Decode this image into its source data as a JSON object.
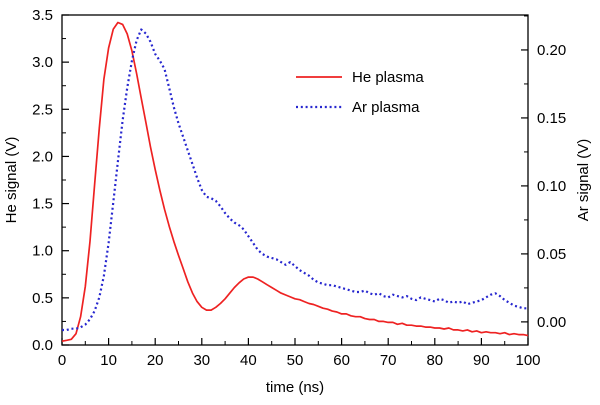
{
  "figure": {
    "background": "#ffffff",
    "axis_color": "#000000"
  },
  "chart_data": {
    "type": "line",
    "title": "",
    "xlabel": "time (ns)",
    "ylabel_left": "He signal (V)",
    "ylabel_right": "Ar signal (V)",
    "grid": false,
    "legend_position": "upper-center-inside",
    "x_range": [
      0,
      100
    ],
    "left_range": [
      0,
      3.5
    ],
    "right_range": [
      -0.017,
      0.2257
    ],
    "x_ticks": [
      0,
      10,
      20,
      30,
      40,
      50,
      60,
      70,
      80,
      90,
      100
    ],
    "x_tick_labels": [
      "0",
      "10",
      "20",
      "30",
      "40",
      "50",
      "60",
      "70",
      "80",
      "90",
      "100"
    ],
    "x_minor_ticks": [
      5,
      15,
      25,
      35,
      45,
      55,
      65,
      75,
      85,
      95
    ],
    "left_ticks": [
      0,
      0.5,
      1,
      1.5,
      2,
      2.5,
      3,
      3.5
    ],
    "left_tick_labels": [
      "0.0",
      "0.5",
      "1.0",
      "1.5",
      "2.0",
      "2.5",
      "3.0",
      "3.5"
    ],
    "left_minor_ticks": [
      0.25,
      0.75,
      1.25,
      1.75,
      2.25,
      2.75,
      3.25
    ],
    "right_ticks": [
      0,
      0.05,
      0.1,
      0.15,
      0.2
    ],
    "right_tick_labels": [
      "0.00",
      "0.05",
      "0.10",
      "0.15",
      "0.20"
    ],
    "right_minor_ticks": [
      0.025,
      0.075,
      0.125,
      0.175,
      0.225
    ],
    "legend": {
      "row_y": [
        77,
        107
      ],
      "entries": [
        {
          "label": "He plasma",
          "color": "#ee2222",
          "dash": "",
          "width": 1.8
        },
        {
          "label": "Ar plasma",
          "color": "#2727cf",
          "dash": "2 2.8",
          "width": 2.2
        }
      ]
    },
    "series": [
      {
        "id": "he-plasma",
        "name": "He plasma",
        "axis": "left",
        "color": "#ee2222",
        "dash": "",
        "width": 1.7,
        "peak": {
          "t": 12,
          "value": 3.42
        },
        "points": [
          [
            0,
            0.04
          ],
          [
            1,
            0.05
          ],
          [
            2,
            0.06
          ],
          [
            3,
            0.12
          ],
          [
            4,
            0.3
          ],
          [
            5,
            0.62
          ],
          [
            6,
            1.1
          ],
          [
            7,
            1.7
          ],
          [
            8,
            2.3
          ],
          [
            9,
            2.82
          ],
          [
            10,
            3.15
          ],
          [
            11,
            3.35
          ],
          [
            12,
            3.42
          ],
          [
            13,
            3.4
          ],
          [
            14,
            3.3
          ],
          [
            15,
            3.12
          ],
          [
            16,
            2.88
          ],
          [
            17,
            2.62
          ],
          [
            18,
            2.36
          ],
          [
            19,
            2.1
          ],
          [
            20,
            1.86
          ],
          [
            21,
            1.64
          ],
          [
            22,
            1.44
          ],
          [
            23,
            1.26
          ],
          [
            24,
            1.1
          ],
          [
            25,
            0.95
          ],
          [
            26,
            0.81
          ],
          [
            27,
            0.67
          ],
          [
            28,
            0.55
          ],
          [
            29,
            0.46
          ],
          [
            30,
            0.4
          ],
          [
            31,
            0.37
          ],
          [
            32,
            0.37
          ],
          [
            33,
            0.4
          ],
          [
            34,
            0.44
          ],
          [
            35,
            0.49
          ],
          [
            36,
            0.55
          ],
          [
            37,
            0.61
          ],
          [
            38,
            0.66
          ],
          [
            39,
            0.7
          ],
          [
            40,
            0.72
          ],
          [
            41,
            0.72
          ],
          [
            42,
            0.7
          ],
          [
            43,
            0.67
          ],
          [
            44,
            0.64
          ],
          [
            45,
            0.61
          ],
          [
            46,
            0.58
          ],
          [
            47,
            0.55
          ],
          [
            48,
            0.53
          ],
          [
            49,
            0.51
          ],
          [
            50,
            0.49
          ],
          [
            51,
            0.48
          ],
          [
            52,
            0.46
          ],
          [
            53,
            0.44
          ],
          [
            54,
            0.43
          ],
          [
            55,
            0.41
          ],
          [
            56,
            0.39
          ],
          [
            57,
            0.38
          ],
          [
            58,
            0.36
          ],
          [
            59,
            0.35
          ],
          [
            60,
            0.33
          ],
          [
            61,
            0.33
          ],
          [
            62,
            0.31
          ],
          [
            63,
            0.3
          ],
          [
            64,
            0.3
          ],
          [
            65,
            0.28
          ],
          [
            66,
            0.27
          ],
          [
            67,
            0.27
          ],
          [
            68,
            0.25
          ],
          [
            69,
            0.25
          ],
          [
            70,
            0.24
          ],
          [
            71,
            0.24
          ],
          [
            72,
            0.22
          ],
          [
            73,
            0.23
          ],
          [
            74,
            0.21
          ],
          [
            75,
            0.21
          ],
          [
            76,
            0.2
          ],
          [
            77,
            0.2
          ],
          [
            78,
            0.19
          ],
          [
            79,
            0.19
          ],
          [
            80,
            0.18
          ],
          [
            81,
            0.18
          ],
          [
            82,
            0.17
          ],
          [
            83,
            0.18
          ],
          [
            84,
            0.16
          ],
          [
            85,
            0.16
          ],
          [
            86,
            0.15
          ],
          [
            87,
            0.16
          ],
          [
            88,
            0.14
          ],
          [
            89,
            0.15
          ],
          [
            90,
            0.13
          ],
          [
            91,
            0.14
          ],
          [
            92,
            0.13
          ],
          [
            93,
            0.13
          ],
          [
            94,
            0.12
          ],
          [
            95,
            0.13
          ],
          [
            96,
            0.11
          ],
          [
            97,
            0.12
          ],
          [
            98,
            0.11
          ],
          [
            99,
            0.11
          ],
          [
            100,
            0.1
          ]
        ]
      },
      {
        "id": "ar-plasma",
        "name": "Ar plasma",
        "axis": "right",
        "color": "#2727cf",
        "dash": "2 2.8",
        "width": 2.2,
        "peak": {
          "t": 17,
          "value": 0.215
        },
        "points": [
          [
            0,
            -0.006
          ],
          [
            1,
            -0.006
          ],
          [
            2,
            -0.005
          ],
          [
            3,
            -0.005
          ],
          [
            4,
            -0.004
          ],
          [
            5,
            -0.002
          ],
          [
            6,
            0.002
          ],
          [
            7,
            0.008
          ],
          [
            8,
            0.018
          ],
          [
            9,
            0.034
          ],
          [
            10,
            0.058
          ],
          [
            11,
            0.088
          ],
          [
            12,
            0.118
          ],
          [
            13,
            0.148
          ],
          [
            14,
            0.172
          ],
          [
            15,
            0.192
          ],
          [
            16,
            0.207
          ],
          [
            17,
            0.215
          ],
          [
            18,
            0.212
          ],
          [
            19,
            0.206
          ],
          [
            20,
            0.197
          ],
          [
            21,
            0.192
          ],
          [
            22,
            0.186
          ],
          [
            23,
            0.172
          ],
          [
            24,
            0.158
          ],
          [
            25,
            0.146
          ],
          [
            26,
            0.136
          ],
          [
            27,
            0.126
          ],
          [
            28,
            0.116
          ],
          [
            29,
            0.106
          ],
          [
            30,
            0.097
          ],
          [
            31,
            0.092
          ],
          [
            32,
            0.091
          ],
          [
            33,
            0.089
          ],
          [
            34,
            0.085
          ],
          [
            35,
            0.08
          ],
          [
            36,
            0.076
          ],
          [
            37,
            0.073
          ],
          [
            38,
            0.071
          ],
          [
            39,
            0.068
          ],
          [
            40,
            0.063
          ],
          [
            41,
            0.058
          ],
          [
            42,
            0.053
          ],
          [
            43,
            0.05
          ],
          [
            44,
            0.048
          ],
          [
            45,
            0.047
          ],
          [
            46,
            0.046
          ],
          [
            47,
            0.044
          ],
          [
            48,
            0.042
          ],
          [
            49,
            0.044
          ],
          [
            50,
            0.041
          ],
          [
            51,
            0.038
          ],
          [
            52,
            0.036
          ],
          [
            53,
            0.034
          ],
          [
            54,
            0.031
          ],
          [
            55,
            0.029
          ],
          [
            56,
            0.028
          ],
          [
            57,
            0.027
          ],
          [
            58,
            0.027
          ],
          [
            59,
            0.026
          ],
          [
            60,
            0.025
          ],
          [
            61,
            0.024
          ],
          [
            62,
            0.023
          ],
          [
            63,
            0.022
          ],
          [
            64,
            0.022
          ],
          [
            65,
            0.023
          ],
          [
            66,
            0.021
          ],
          [
            67,
            0.02
          ],
          [
            68,
            0.021
          ],
          [
            69,
            0.019
          ],
          [
            70,
            0.018
          ],
          [
            71,
            0.02
          ],
          [
            72,
            0.019
          ],
          [
            73,
            0.018
          ],
          [
            74,
            0.019
          ],
          [
            75,
            0.017
          ],
          [
            76,
            0.016
          ],
          [
            77,
            0.018
          ],
          [
            78,
            0.017
          ],
          [
            79,
            0.016
          ],
          [
            80,
            0.015
          ],
          [
            81,
            0.017
          ],
          [
            82,
            0.016
          ],
          [
            83,
            0.014
          ],
          [
            84,
            0.015
          ],
          [
            85,
            0.014
          ],
          [
            86,
            0.015
          ],
          [
            87,
            0.013
          ],
          [
            88,
            0.014
          ],
          [
            89,
            0.015
          ],
          [
            90,
            0.016
          ],
          [
            91,
            0.018
          ],
          [
            92,
            0.02
          ],
          [
            93,
            0.021
          ],
          [
            94,
            0.019
          ],
          [
            95,
            0.016
          ],
          [
            96,
            0.014
          ],
          [
            97,
            0.012
          ],
          [
            98,
            0.011
          ],
          [
            99,
            0.01
          ],
          [
            100,
            0.01
          ]
        ]
      }
    ]
  }
}
